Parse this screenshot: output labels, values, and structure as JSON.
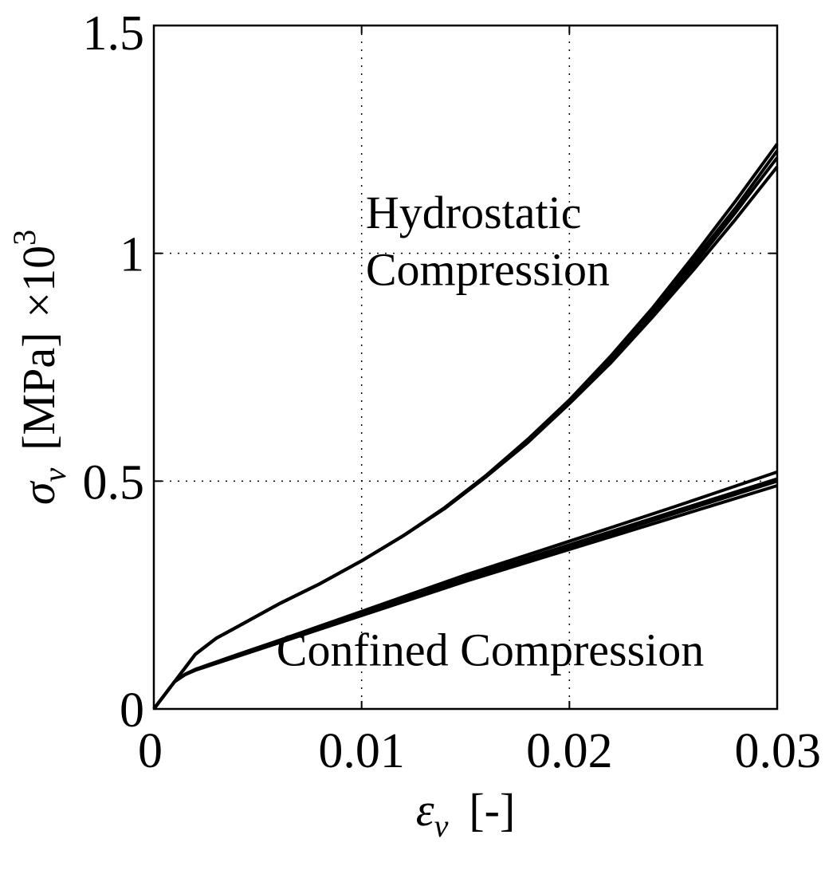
{
  "chart_data": {
    "type": "line",
    "title": "",
    "xlabel": {
      "symbol": "ε",
      "sub": "v",
      "unit": "[-]"
    },
    "ylabel": {
      "symbol": "σ",
      "sub": "v",
      "unit": "[MPa]",
      "multiplier": "×10",
      "exponent": "3"
    },
    "xlim": [
      0,
      0.03
    ],
    "ylim": [
      0,
      1.5
    ],
    "xticks": [
      0,
      0.01,
      0.02,
      0.03
    ],
    "xtick_labels": [
      "0",
      "0.01",
      "0.02",
      "0.03"
    ],
    "yticks": [
      0,
      0.5,
      1,
      1.5
    ],
    "ytick_labels": [
      "0",
      "0.5",
      "1",
      "1.5"
    ],
    "grid": true,
    "line_color": "#000000",
    "annotations": [
      {
        "text": "Hydrostatic",
        "x": 0.0102,
        "y": 1.055
      },
      {
        "text": "Compression",
        "x": 0.0102,
        "y": 0.93
      },
      {
        "text": "Confined Compression",
        "x": 0.0059,
        "y": 0.095
      }
    ],
    "series": [
      {
        "group": "Hydrostatic Compression",
        "points": [
          [
            0,
            0
          ],
          [
            0.001,
            0.06
          ],
          [
            0.002,
            0.12
          ],
          [
            0.003,
            0.155
          ],
          [
            0.004,
            0.18
          ],
          [
            0.006,
            0.23
          ],
          [
            0.008,
            0.275
          ],
          [
            0.01,
            0.325
          ],
          [
            0.012,
            0.38
          ],
          [
            0.014,
            0.44
          ],
          [
            0.016,
            0.51
          ],
          [
            0.018,
            0.585
          ],
          [
            0.02,
            0.67
          ],
          [
            0.022,
            0.76
          ],
          [
            0.024,
            0.86
          ],
          [
            0.026,
            0.965
          ],
          [
            0.028,
            1.075
          ],
          [
            0.03,
            1.19
          ]
        ]
      },
      {
        "group": "Hydrostatic Compression",
        "points": [
          [
            0,
            0
          ],
          [
            0.001,
            0.06
          ],
          [
            0.002,
            0.12
          ],
          [
            0.003,
            0.155
          ],
          [
            0.004,
            0.18
          ],
          [
            0.006,
            0.23
          ],
          [
            0.008,
            0.275
          ],
          [
            0.01,
            0.325
          ],
          [
            0.012,
            0.38
          ],
          [
            0.014,
            0.44
          ],
          [
            0.016,
            0.51
          ],
          [
            0.018,
            0.585
          ],
          [
            0.02,
            0.672
          ],
          [
            0.022,
            0.765
          ],
          [
            0.024,
            0.865
          ],
          [
            0.026,
            0.975
          ],
          [
            0.028,
            1.09
          ],
          [
            0.03,
            1.21
          ]
        ]
      },
      {
        "group": "Hydrostatic Compression",
        "points": [
          [
            0,
            0
          ],
          [
            0.001,
            0.06
          ],
          [
            0.002,
            0.12
          ],
          [
            0.003,
            0.155
          ],
          [
            0.004,
            0.18
          ],
          [
            0.006,
            0.23
          ],
          [
            0.008,
            0.275
          ],
          [
            0.01,
            0.325
          ],
          [
            0.012,
            0.38
          ],
          [
            0.014,
            0.44
          ],
          [
            0.016,
            0.512
          ],
          [
            0.018,
            0.59
          ],
          [
            0.02,
            0.675
          ],
          [
            0.022,
            0.77
          ],
          [
            0.024,
            0.872
          ],
          [
            0.026,
            0.985
          ],
          [
            0.028,
            1.1
          ],
          [
            0.03,
            1.225
          ]
        ]
      },
      {
        "group": "Hydrostatic Compression",
        "points": [
          [
            0,
            0
          ],
          [
            0.001,
            0.06
          ],
          [
            0.002,
            0.12
          ],
          [
            0.003,
            0.155
          ],
          [
            0.004,
            0.18
          ],
          [
            0.006,
            0.23
          ],
          [
            0.008,
            0.275
          ],
          [
            0.01,
            0.325
          ],
          [
            0.012,
            0.38
          ],
          [
            0.014,
            0.442
          ],
          [
            0.016,
            0.513
          ],
          [
            0.018,
            0.592
          ],
          [
            0.02,
            0.678
          ],
          [
            0.022,
            0.775
          ],
          [
            0.024,
            0.88
          ],
          [
            0.026,
            0.995
          ],
          [
            0.028,
            1.115
          ],
          [
            0.03,
            1.24
          ]
        ]
      },
      {
        "group": "Confined Compression",
        "points": [
          [
            0,
            0
          ],
          [
            0.0005,
            0.03
          ],
          [
            0.001,
            0.06
          ],
          [
            0.0015,
            0.075
          ],
          [
            0.002,
            0.085
          ],
          [
            0.004,
            0.115
          ],
          [
            0.006,
            0.145
          ],
          [
            0.008,
            0.175
          ],
          [
            0.01,
            0.205
          ],
          [
            0.015,
            0.28
          ],
          [
            0.02,
            0.35
          ],
          [
            0.025,
            0.42
          ],
          [
            0.03,
            0.49
          ]
        ]
      },
      {
        "group": "Confined Compression",
        "points": [
          [
            0,
            0
          ],
          [
            0.0005,
            0.03
          ],
          [
            0.001,
            0.06
          ],
          [
            0.0015,
            0.075
          ],
          [
            0.002,
            0.085
          ],
          [
            0.004,
            0.116
          ],
          [
            0.006,
            0.146
          ],
          [
            0.008,
            0.177
          ],
          [
            0.01,
            0.207
          ],
          [
            0.015,
            0.284
          ],
          [
            0.02,
            0.356
          ],
          [
            0.025,
            0.428
          ],
          [
            0.03,
            0.5
          ]
        ]
      },
      {
        "group": "Confined Compression",
        "points": [
          [
            0,
            0
          ],
          [
            0.0005,
            0.03
          ],
          [
            0.001,
            0.06
          ],
          [
            0.0015,
            0.076
          ],
          [
            0.002,
            0.086
          ],
          [
            0.004,
            0.117
          ],
          [
            0.006,
            0.148
          ],
          [
            0.008,
            0.179
          ],
          [
            0.01,
            0.21
          ],
          [
            0.015,
            0.288
          ],
          [
            0.02,
            0.36
          ],
          [
            0.025,
            0.433
          ],
          [
            0.03,
            0.505
          ]
        ]
      },
      {
        "group": "Confined Compression",
        "points": [
          [
            0,
            0
          ],
          [
            0.0005,
            0.03
          ],
          [
            0.001,
            0.06
          ],
          [
            0.0015,
            0.076
          ],
          [
            0.002,
            0.087
          ],
          [
            0.004,
            0.119
          ],
          [
            0.006,
            0.15
          ],
          [
            0.008,
            0.182
          ],
          [
            0.01,
            0.214
          ],
          [
            0.015,
            0.294
          ],
          [
            0.02,
            0.368
          ],
          [
            0.025,
            0.443
          ],
          [
            0.03,
            0.52
          ]
        ]
      }
    ]
  }
}
